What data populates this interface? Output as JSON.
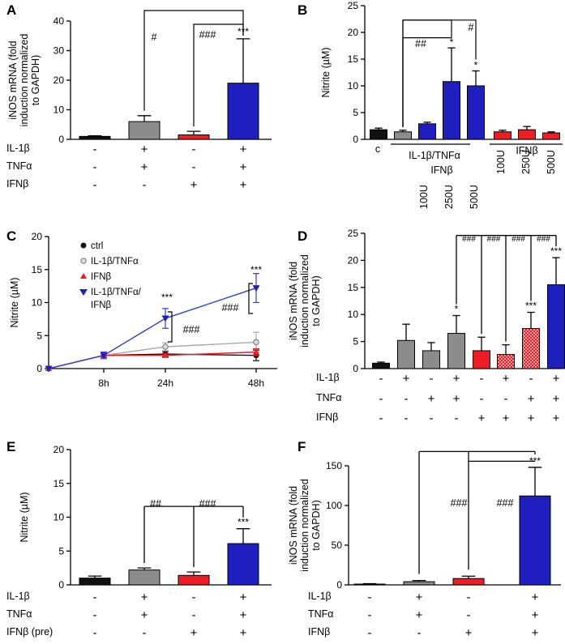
{
  "colors": {
    "black": "#111111",
    "gray": "#8c8c8c",
    "red": "#ee1c24",
    "blue": "#1f1fbf",
    "blue_line": "#2d3ce8",
    "check": "#e06060",
    "light_gray": "#a8a8a8"
  },
  "chart_data": [
    {
      "panel": "A",
      "type": "bar",
      "ylabel": [
        "iNOS mRNA (fold",
        "induction normalized",
        "to GAPDH)"
      ],
      "ylim": [
        0,
        40
      ],
      "yticks": [
        0,
        10,
        20,
        30,
        40
      ],
      "bars": [
        {
          "value": 1,
          "err": 0.2,
          "color": "black"
        },
        {
          "value": 6,
          "err": 2,
          "color": "gray"
        },
        {
          "value": 1.5,
          "err": 1.2,
          "color": "red"
        },
        {
          "value": 19,
          "err": 15,
          "color": "blue"
        }
      ],
      "conditions": [
        {
          "label": "IL-1β",
          "signs": [
            "-",
            "+",
            "-",
            "+"
          ]
        },
        {
          "label": "TNFα",
          "signs": [
            "-",
            "+",
            "-",
            "+"
          ]
        },
        {
          "label": "IFNβ",
          "signs": [
            "-",
            "-",
            "+",
            "+"
          ]
        }
      ],
      "annotations": [
        {
          "text": "***",
          "bar": 3
        },
        {
          "text": "#",
          "from": 1,
          "to": 3,
          "level": 40
        },
        {
          "text": "###",
          "from": 2,
          "to": 3,
          "level": 35
        }
      ]
    },
    {
      "panel": "B",
      "type": "bar",
      "ylabel": [
        "Nitrite (µM)"
      ],
      "ylim": [
        0,
        25
      ],
      "yticks": [
        0,
        5,
        10,
        15,
        20,
        25
      ],
      "bars": [
        {
          "value": 1.8,
          "err": 0.3,
          "color": "black"
        },
        {
          "value": 1.4,
          "err": 0.3,
          "color": "gray"
        },
        {
          "value": 2.9,
          "err": 0.3,
          "color": "blue"
        },
        {
          "value": 10.8,
          "err": 6.3,
          "color": "blue"
        },
        {
          "value": 10,
          "err": 2.8,
          "color": "blue"
        },
        {
          "value": 1.4,
          "err": 0.3,
          "color": "red"
        },
        {
          "value": 1.8,
          "err": 0.6,
          "color": "red"
        },
        {
          "value": 1.2,
          "err": 0.2,
          "color": "red"
        }
      ],
      "xlabels": {
        "c": "c",
        "group1": "IL-1β/TNFα",
        "group1b": "IFNβ",
        "group2": "IFNβ",
        "doses": [
          "100U",
          "250U",
          "500U",
          "100U",
          "250U",
          "500U"
        ]
      },
      "annotations": [
        {
          "text": "*",
          "bar": 3
        },
        {
          "text": "*",
          "bar": 4
        },
        {
          "text": "##",
          "from": 1,
          "to": 3,
          "level": 19
        },
        {
          "text": "#",
          "from": 1,
          "to": 4,
          "level": 22.3
        }
      ]
    },
    {
      "panel": "C",
      "type": "line",
      "ylabel": [
        "Nitrite (µM)"
      ],
      "ylim": [
        0,
        20
      ],
      "yticks": [
        0,
        5,
        10,
        15,
        20
      ],
      "x": [
        0,
        8,
        24,
        48
      ],
      "xticklabels": [
        "8h",
        "24h",
        "48h"
      ],
      "series": [
        {
          "name": "ctrl",
          "values": [
            0,
            2.0,
            2.2,
            2.0
          ],
          "err": [
            0,
            0.3,
            0.4,
            0.8
          ],
          "color": "black",
          "marker": "circle"
        },
        {
          "name": "IL-1β/TNFα",
          "values": [
            0,
            2.0,
            3.3,
            4.0
          ],
          "err": [
            0,
            0.3,
            0.6,
            1.5
          ],
          "color": "light_gray",
          "marker": "circle-open"
        },
        {
          "name": "IFNβ",
          "values": [
            0,
            2.0,
            2.0,
            2.5
          ],
          "err": [
            0,
            0.3,
            0.3,
            0.5
          ],
          "color": "red",
          "marker": "triangle"
        },
        {
          "name": "IL-1β/TNFα/\nIFNβ",
          "values": [
            0,
            2.0,
            7.6,
            12.2
          ],
          "err": [
            0,
            0.5,
            1.5,
            2.2
          ],
          "color": "blue_line",
          "marker": "triangle-down"
        }
      ],
      "legend": {
        "line1": "ctrl",
        "line2": "IL-1β/TNFα",
        "line3": "IFNβ",
        "line4a": "IL-1β/TNFα/",
        "line4b": "IFNβ"
      },
      "annotations": [
        {
          "text": "***",
          "x": 24
        },
        {
          "text": "***",
          "x": 48
        },
        {
          "text": "###",
          "x": 24
        },
        {
          "text": "###",
          "x": 48
        }
      ]
    },
    {
      "panel": "D",
      "type": "bar",
      "ylabel": [
        "iNOS mRNA (fold",
        "induction normalized",
        "to GAPDH)"
      ],
      "ylim": [
        0,
        25
      ],
      "yticks": [
        0,
        5,
        10,
        15,
        20,
        25
      ],
      "bars": [
        {
          "value": 1,
          "err": 0.2,
          "color": "black"
        },
        {
          "value": 5.2,
          "err": 3,
          "color": "gray"
        },
        {
          "value": 3.3,
          "err": 1.5,
          "color": "gray"
        },
        {
          "value": 6.5,
          "err": 3.3,
          "color": "gray"
        },
        {
          "value": 3.3,
          "err": 2.5,
          "color": "red"
        },
        {
          "value": 2.6,
          "err": 1.8,
          "color": "check"
        },
        {
          "value": 7.4,
          "err": 3,
          "color": "check"
        },
        {
          "value": 15.5,
          "err": 5,
          "color": "blue"
        }
      ],
      "conditions": [
        {
          "label": "IL-1β",
          "signs": [
            "-",
            "+",
            "-",
            "+",
            "-",
            "+",
            "-",
            "+"
          ]
        },
        {
          "label": "TNFα",
          "signs": [
            "-",
            "-",
            "+",
            "+",
            "-",
            "-",
            "+",
            "+"
          ]
        },
        {
          "label": "IFNβ",
          "signs": [
            "-",
            "-",
            "-",
            "-",
            "+",
            "+",
            "+",
            "+"
          ]
        }
      ],
      "annotations": [
        {
          "text": "*",
          "bar": 3
        },
        {
          "text": "***",
          "bar": 6
        },
        {
          "text": "***",
          "bar": 7
        },
        {
          "text": "###",
          "between": [
            3,
            4
          ]
        },
        {
          "text": "###",
          "between": [
            4,
            5
          ]
        },
        {
          "text": "###",
          "between": [
            5,
            6
          ]
        },
        {
          "text": "###",
          "between": [
            6,
            7
          ]
        }
      ]
    },
    {
      "panel": "E",
      "type": "bar",
      "ylabel": [
        "Nitrite (µM)"
      ],
      "ylim": [
        0,
        20
      ],
      "yticks": [
        0,
        5,
        10,
        15,
        20
      ],
      "bars": [
        {
          "value": 1,
          "err": 0.3,
          "color": "black"
        },
        {
          "value": 2.2,
          "err": 0.3,
          "color": "gray"
        },
        {
          "value": 1.4,
          "err": 0.5,
          "color": "red"
        },
        {
          "value": 6.1,
          "err": 2.2,
          "color": "blue"
        }
      ],
      "conditions": [
        {
          "label": "IL-1β",
          "signs": [
            "-",
            "+",
            "-",
            "+"
          ]
        },
        {
          "label": "TNFα",
          "signs": [
            "-",
            "+",
            "-",
            "+"
          ]
        },
        {
          "label": "IFNβ (pre)",
          "signs": [
            "-",
            "-",
            "+",
            "+"
          ]
        }
      ],
      "annotations": [
        {
          "text": "***",
          "bar": 3
        },
        {
          "text": "##",
          "from": 1,
          "to": 3,
          "level": 11.6
        },
        {
          "text": "###",
          "from": 2,
          "to": 3,
          "level": 11.6
        }
      ]
    },
    {
      "panel": "F",
      "type": "bar",
      "ylabel": [
        "iNOS mRNA (fold",
        "induction normalized",
        "to GAPDH)"
      ],
      "ylim": [
        0,
        150
      ],
      "yticks": [
        0,
        50,
        100,
        150
      ],
      "bars": [
        {
          "value": 1,
          "err": 0.5,
          "color": "black"
        },
        {
          "value": 4,
          "err": 1.5,
          "color": "gray"
        },
        {
          "value": 8,
          "err": 3,
          "color": "red"
        },
        {
          "value": 112,
          "err": 36,
          "color": "blue"
        }
      ],
      "conditions": [
        {
          "label": "IL-1β",
          "signs": [
            "-",
            "+",
            "-",
            "+"
          ]
        },
        {
          "label": "TNFα",
          "signs": [
            "-",
            "+",
            "-",
            "+"
          ]
        },
        {
          "label": "IFNβ",
          "signs": [
            "-",
            "-",
            "+",
            "+"
          ]
        }
      ],
      "annotations": [
        {
          "text": "***",
          "bar": 3
        },
        {
          "text": "###",
          "from": 1,
          "to": 3,
          "level": 168
        },
        {
          "text": "###",
          "from": 2,
          "to": 3,
          "level": 168
        }
      ]
    }
  ]
}
